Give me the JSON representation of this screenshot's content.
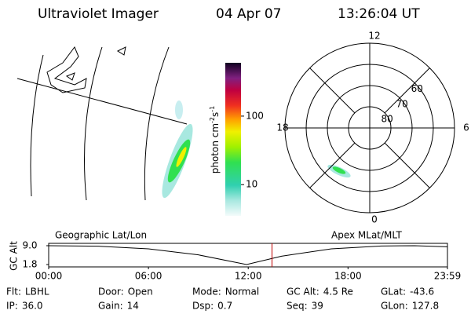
{
  "header": {
    "instrument": "Ultraviolet Imager",
    "date": "04 Apr 07",
    "time": "13:26:04 UT"
  },
  "colorbar": {
    "label": "photon cm",
    "exp1": "-2",
    "unit2": "s",
    "exp2": "-1",
    "range": [
      3.5,
      600
    ],
    "ticks": [
      10,
      100
    ],
    "log": true
  },
  "polar": {
    "hour_labels": [
      {
        "value": 12,
        "label": "12"
      },
      {
        "value": 6,
        "label": "6"
      },
      {
        "value": 0,
        "label": "0"
      },
      {
        "value": 18,
        "label": "18"
      }
    ],
    "lat_range": [
      90,
      50
    ],
    "lat_rings": [
      80,
      70,
      60
    ]
  },
  "altitude_plot": {
    "left_label": "Geographic Lat/Lon",
    "right_label": "Apex MLat/MLT",
    "y_label": "GC Alt",
    "ylim": [
      1.8,
      9.0
    ],
    "yticks": [
      {
        "value": 9.0,
        "label": "9.0"
      },
      {
        "value": 1.8,
        "label": "1.8"
      }
    ],
    "xlim": [
      0,
      23.98
    ],
    "xticks": [
      {
        "value": 0,
        "label": "00:00"
      },
      {
        "value": 6,
        "label": "06:00"
      },
      {
        "value": 12,
        "label": "12:00"
      },
      {
        "value": 18,
        "label": "18:00"
      },
      {
        "value": 23.98,
        "label": "23:59"
      }
    ],
    "x": [
      0,
      3,
      6,
      9,
      11.9,
      14,
      17,
      20,
      22,
      23.98
    ],
    "values": [
      9.0,
      8.8,
      7.8,
      5.5,
      1.8,
      5.0,
      7.8,
      8.9,
      9.0,
      8.6
    ],
    "current_hour": 13.43
  },
  "footer": {
    "rows": [
      [
        {
          "label": "Flt:",
          "value": "LBHL"
        },
        {
          "label": "Door:",
          "value": "Open"
        },
        {
          "label": "Mode:",
          "value": "Normal"
        },
        {
          "label": "GC Alt:",
          "value": "4.5 Re"
        },
        {
          "label": "GLat:",
          "value": "-43.6"
        }
      ],
      [
        {
          "label": "IP:",
          "value": "36.0"
        },
        {
          "label": "Gain:",
          "value": "14"
        },
        {
          "label": "Dsp:",
          "value": "0.7"
        },
        {
          "label": "Seq:",
          "value": "39"
        },
        {
          "label": "GLon:",
          "value": "127.8"
        }
      ]
    ]
  }
}
